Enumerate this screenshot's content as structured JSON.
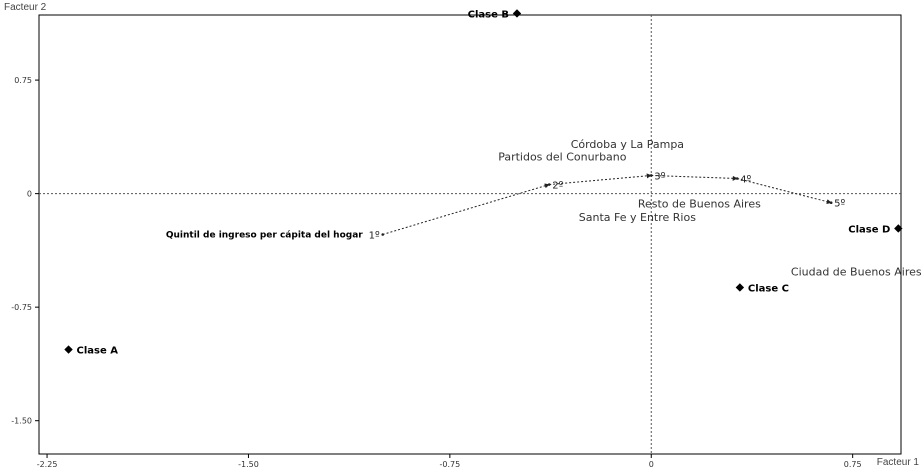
{
  "chart_data": {
    "type": "scatter",
    "xlabel": "Facteur 1",
    "ylabel": "Facteur 2",
    "xlim": [
      -2.28,
      0.93
    ],
    "ylim": [
      -1.72,
      1.18
    ],
    "xticks": [
      {
        "value": -2.25,
        "label": "-2.25"
      },
      {
        "value": -1.5,
        "label": "-1.50"
      },
      {
        "value": -0.75,
        "label": "-0.75"
      },
      {
        "value": 0,
        "label": "0"
      },
      {
        "value": 0.75,
        "label": "0.75"
      }
    ],
    "yticks": [
      {
        "value": 0.75,
        "label": "0.75"
      },
      {
        "value": 0,
        "label": "0"
      },
      {
        "value": -0.75,
        "label": "-0.75"
      },
      {
        "value": -1.5,
        "label": "-1.50"
      }
    ],
    "reference_lines": {
      "x": 0,
      "y": 0,
      "style": "dotted"
    },
    "class_points": [
      {
        "label": "Clase A",
        "x": -2.17,
        "y": -1.03,
        "label_side": "right"
      },
      {
        "label": "Clase B",
        "x": -0.5,
        "y": 1.19,
        "label_side": "left"
      },
      {
        "label": "Clase C",
        "x": 0.33,
        "y": -0.62,
        "label_side": "right"
      },
      {
        "label": "Clase D",
        "x": 0.92,
        "y": -0.23,
        "label_side": "left"
      }
    ],
    "quintile_path": {
      "title": "Quintil de ingreso per cápita del hogar",
      "points": [
        {
          "label": "1º",
          "x": -1.0,
          "y": -0.27
        },
        {
          "label": "2º",
          "x": -0.38,
          "y": 0.06
        },
        {
          "label": "3º",
          "x": 0.0,
          "y": 0.12
        },
        {
          "label": "4º",
          "x": 0.32,
          "y": 0.1
        },
        {
          "label": "5º",
          "x": 0.67,
          "y": -0.06
        }
      ]
    },
    "region_labels": [
      {
        "label": "Córdoba y La Pampa",
        "x": -0.3,
        "y": 0.3
      },
      {
        "label": "Partidos del Conurbano",
        "x": -0.57,
        "y": 0.22
      },
      {
        "label": "Resto de Buenos Aires",
        "x": -0.05,
        "y": -0.09
      },
      {
        "label": "Santa Fe y Entre Rios",
        "x": -0.27,
        "y": -0.18
      },
      {
        "label": "Ciudad de Buenos Aires",
        "x": 0.52,
        "y": -0.54
      }
    ]
  }
}
